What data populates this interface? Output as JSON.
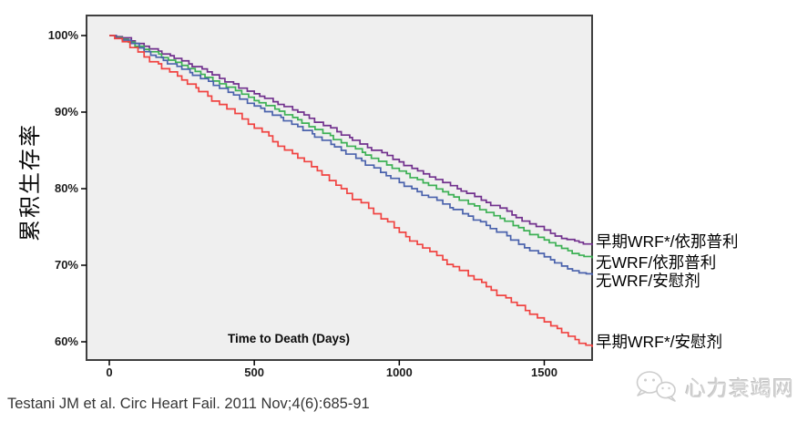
{
  "figure": {
    "y_axis_label": "累积生存率",
    "x_axis_title": "Time to Death (Days)",
    "citation": "Testani JM et al. Circ Heart Fail. 2011 Nov;4(6):685-91",
    "watermark_text": "心力衰竭网"
  },
  "colors": {
    "plot_background": "#efefef",
    "plot_frame": "#3f3f3f",
    "tick": "#000000",
    "watermark": "#cccccc",
    "early_wrf_enalapril": "#71308d",
    "no_wrf_enalapril": "#3cb054",
    "no_wrf_placebo": "#4a62ac",
    "early_wrf_placebo": "#f04341"
  },
  "chart_data": {
    "type": "line",
    "subtype": "kaplan-meier-step",
    "title": "",
    "xlabel": "Time to Death (Days)",
    "ylabel": "累积生存率",
    "xlim": [
      0,
      1665
    ],
    "ylim_percent": [
      60,
      100
    ],
    "x_ticks": [
      0,
      500,
      1000,
      1500
    ],
    "y_ticks_percent": [
      100,
      90,
      80,
      70,
      60
    ],
    "y_tick_labels": [
      "100%",
      "90%",
      "80%",
      "70%",
      "60%"
    ],
    "grid": false,
    "legend_position": "right-of-line-ends",
    "series": [
      {
        "name": "早期WRF*/依那普利",
        "color_key": "early_wrf_enalapril",
        "color": "#71308d",
        "points_day_percent": [
          [
            0,
            100
          ],
          [
            45,
            99.7
          ],
          [
            120,
            98.6
          ],
          [
            250,
            96.7
          ],
          [
            380,
            94.4
          ],
          [
            500,
            92.4
          ],
          [
            650,
            90.0
          ],
          [
            800,
            87.0
          ],
          [
            1000,
            83.5
          ],
          [
            1150,
            80.8
          ],
          [
            1300,
            78.2
          ],
          [
            1450,
            75.4
          ],
          [
            1500,
            74.6
          ],
          [
            1560,
            73.5
          ],
          [
            1620,
            73.0
          ],
          [
            1665,
            72.6
          ]
        ]
      },
      {
        "name": "无WRF/依那普利",
        "color_key": "no_wrf_enalapril",
        "color": "#3cb054",
        "points_day_percent": [
          [
            0,
            100
          ],
          [
            45,
            99.5
          ],
          [
            120,
            98.2
          ],
          [
            250,
            96.1
          ],
          [
            380,
            93.7
          ],
          [
            500,
            91.5
          ],
          [
            650,
            89.0
          ],
          [
            800,
            86.0
          ],
          [
            1000,
            82.3
          ],
          [
            1150,
            79.6
          ],
          [
            1300,
            76.9
          ],
          [
            1450,
            74.0
          ],
          [
            1500,
            73.3
          ],
          [
            1560,
            72.2
          ],
          [
            1620,
            71.3
          ],
          [
            1665,
            70.9
          ]
        ]
      },
      {
        "name": "无WRF/安慰剂",
        "color_key": "no_wrf_placebo",
        "color": "#4a62ac",
        "points_day_percent": [
          [
            0,
            100
          ],
          [
            45,
            99.4
          ],
          [
            120,
            97.9
          ],
          [
            250,
            95.6
          ],
          [
            380,
            93.1
          ],
          [
            500,
            90.8
          ],
          [
            650,
            88.1
          ],
          [
            800,
            85.0
          ],
          [
            1000,
            80.8
          ],
          [
            1150,
            78.0
          ],
          [
            1300,
            75.2
          ],
          [
            1450,
            71.9
          ],
          [
            1500,
            71.1
          ],
          [
            1560,
            69.9
          ],
          [
            1620,
            69.0
          ],
          [
            1665,
            68.7
          ]
        ]
      },
      {
        "name": "早期WRF*/安慰剂",
        "color_key": "early_wrf_placebo",
        "color": "#f04341",
        "points_day_percent": [
          [
            0,
            100
          ],
          [
            45,
            99.2
          ],
          [
            120,
            97.2
          ],
          [
            250,
            94.2
          ],
          [
            380,
            91.0
          ],
          [
            500,
            87.9
          ],
          [
            650,
            84.0
          ],
          [
            800,
            80.0
          ],
          [
            1000,
            74.3
          ],
          [
            1150,
            70.7
          ],
          [
            1300,
            67.2
          ],
          [
            1450,
            63.6
          ],
          [
            1500,
            62.6
          ],
          [
            1560,
            61.2
          ],
          [
            1620,
            59.8
          ],
          [
            1665,
            59.3
          ]
        ]
      }
    ]
  }
}
